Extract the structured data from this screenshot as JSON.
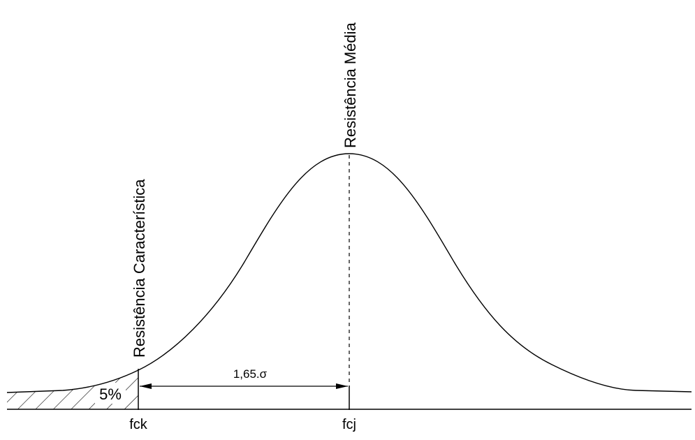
{
  "labels": {
    "mean_strength": "Resistência Média",
    "characteristic_strength": "Resistência Característica",
    "tail_percent": "5%",
    "distance": "1,65.σ",
    "fck": "fck",
    "fcj": "fcj"
  },
  "colors": {
    "stroke": "#000000",
    "background": "#ffffff"
  }
}
